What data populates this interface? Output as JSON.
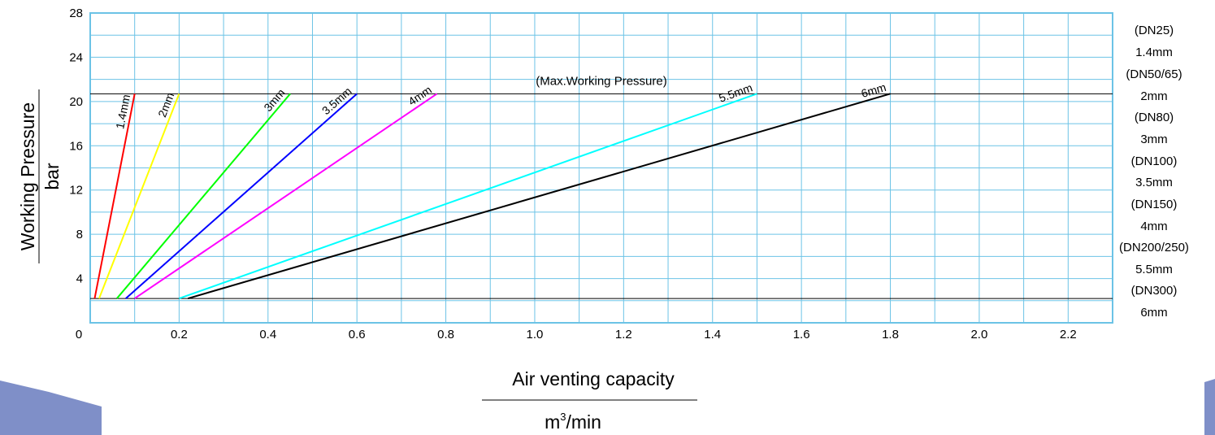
{
  "chart_data": {
    "type": "line",
    "xlabel": "Air venting capacity",
    "xunit_base": "m",
    "xunit_sup": "3",
    "xunit_rest": "/min",
    "ylabel": "Working Pressure",
    "yunit": "bar",
    "xlim": [
      0,
      2.3
    ],
    "ylim": [
      0,
      28
    ],
    "x_ticks": [
      "0.2",
      "0.4",
      "0.6",
      "0.8",
      "1.0",
      "1.2",
      "1.4",
      "1.6",
      "1.8",
      "2.0",
      "2.2"
    ],
    "x_tick_values": [
      0.2,
      0.4,
      0.6,
      0.8,
      1.0,
      1.2,
      1.4,
      1.6,
      1.8,
      2.0,
      2.2
    ],
    "y_ticks": [
      "4",
      "8",
      "12",
      "16",
      "20",
      "24",
      "28"
    ],
    "y_tick_values": [
      4,
      8,
      12,
      16,
      20,
      24,
      28
    ],
    "origin_label": "0",
    "grid": true,
    "grid_color": "#6cc3e6",
    "reference_lines": [
      {
        "label": "(Max.Working Pressure)",
        "y": 20.7
      },
      {
        "label": "",
        "y": 2.2
      }
    ],
    "series": [
      {
        "name": "1.4mm",
        "color": "#ff0000",
        "x": [
          0.01,
          0.1
        ],
        "y": [
          2.2,
          20.7
        ]
      },
      {
        "name": "2mm",
        "color": "#ffff00",
        "x": [
          0.02,
          0.2
        ],
        "y": [
          2.2,
          20.7
        ]
      },
      {
        "name": "3mm",
        "color": "#00ff00",
        "x": [
          0.06,
          0.45
        ],
        "y": [
          2.2,
          20.7
        ]
      },
      {
        "name": "3.5mm",
        "color": "#0000ff",
        "x": [
          0.08,
          0.6
        ],
        "y": [
          2.2,
          20.7
        ]
      },
      {
        "name": "4mm",
        "color": "#ff00ff",
        "x": [
          0.1,
          0.78
        ],
        "y": [
          2.2,
          20.7
        ]
      },
      {
        "name": "5.5mm",
        "color": "#00ffff",
        "x": [
          0.2,
          1.5
        ],
        "y": [
          2.2,
          20.7
        ]
      },
      {
        "name": "6mm",
        "color": "#000000",
        "x": [
          0.22,
          1.8
        ],
        "y": [
          2.2,
          20.7
        ]
      }
    ],
    "side_legend": [
      {
        "dn": "(DN25)",
        "size": "1.4mm"
      },
      {
        "dn": "(DN50/65)",
        "size": "2mm"
      },
      {
        "dn": "(DN80)",
        "size": "3mm"
      },
      {
        "dn": "(DN100)",
        "size": "3.5mm"
      },
      {
        "dn": "(DN150)",
        "size": "4mm"
      },
      {
        "dn": "(DN200/250)",
        "size": "5.5mm"
      },
      {
        "dn": "(DN300)",
        "size": "6mm"
      }
    ]
  },
  "colors": {
    "frame": "#6cc3e6",
    "decor": "#7f8fc8"
  }
}
